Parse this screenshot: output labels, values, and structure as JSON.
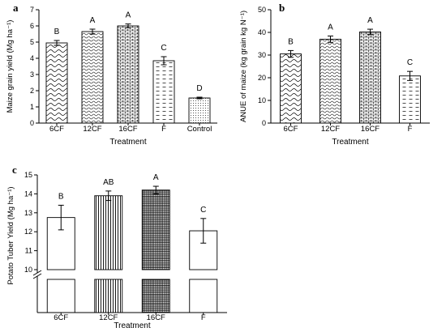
{
  "chart_data": [
    {
      "panel": "a",
      "type": "bar",
      "categories": [
        "6CF",
        "12CF",
        "16CF",
        "F",
        "Control"
      ],
      "values": [
        4.95,
        5.65,
        6.0,
        3.85,
        1.55
      ],
      "errors": [
        0.15,
        0.15,
        0.12,
        0.25,
        0.05
      ],
      "letters": [
        "B",
        "A",
        "A",
        "C",
        "D"
      ],
      "patterns": [
        "wave",
        "wavedense",
        "brick",
        "dash",
        "dots"
      ],
      "xlabel": "Treatment",
      "ylabel": "Maize grain yield (Mg ha⁻¹)",
      "ylim": [
        0,
        7
      ],
      "yticks": [
        0,
        1,
        2,
        3,
        4,
        5,
        6,
        7
      ]
    },
    {
      "panel": "b",
      "type": "bar",
      "categories": [
        "6CF",
        "12CF",
        "16CF",
        "F"
      ],
      "values": [
        30.5,
        37.0,
        40.2,
        20.8
      ],
      "errors": [
        1.5,
        1.4,
        1.2,
        2.0
      ],
      "letters": [
        "B",
        "A",
        "A",
        "C"
      ],
      "patterns": [
        "wave",
        "wavedense",
        "brick",
        "dash"
      ],
      "xlabel": "Treatment",
      "ylabel": "ANUE of maize (kg grain kg N⁻¹)",
      "ylim": [
        0,
        50
      ],
      "yticks": [
        0,
        10,
        20,
        30,
        40,
        50
      ]
    },
    {
      "panel": "c",
      "type": "bar",
      "categories": [
        "6CF",
        "12CF",
        "16CF",
        "F"
      ],
      "values": [
        12.75,
        13.9,
        14.2,
        12.05
      ],
      "errors": [
        0.65,
        0.25,
        0.2,
        0.65
      ],
      "letters": [
        "B",
        "AB",
        "A",
        "C"
      ],
      "patterns": [
        "none",
        "vlines",
        "grid",
        "none"
      ],
      "xlabel": "Treatment",
      "ylabel": "Potato Tuber Yield (Mg ha⁻¹)",
      "ylim": [
        10,
        15
      ],
      "yticks": [
        10,
        11,
        12,
        13,
        14,
        15
      ],
      "axis_break": true
    }
  ]
}
